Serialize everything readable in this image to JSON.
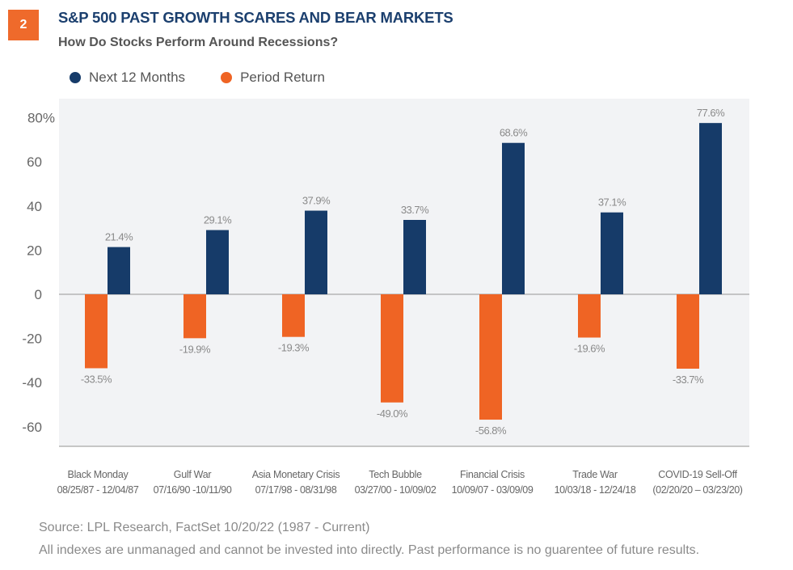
{
  "header": {
    "badge": "2",
    "title": "S&P 500 PAST GROWTH SCARES AND BEAR MARKETS",
    "subtitle": "How Do Stocks Perform Around Recessions?"
  },
  "colors": {
    "next_12_months": "#163b69",
    "period_return": "#ef6424",
    "plot_background": "#f2f3f5",
    "title": "#1b3f6e",
    "badge": "#ef6a2b"
  },
  "chart_data": {
    "type": "bar",
    "title": "S&P 500 PAST GROWTH SCARES AND BEAR MARKETS",
    "subtitle": "How Do Stocks Perform Around Recessions?",
    "xlabel": "",
    "ylabel": "",
    "ylim": [
      -70,
      82
    ],
    "yticks": [
      80,
      60,
      40,
      20,
      0,
      -20,
      -40,
      -60
    ],
    "ytick_labels": [
      "80%",
      "60",
      "40",
      "20",
      "0",
      "-20",
      "-40",
      "-60"
    ],
    "grid": false,
    "legend_position": "top-left",
    "categories": [
      {
        "name": "Black Monday",
        "dates": "08/25/87 - 12/04/87"
      },
      {
        "name": "Gulf War",
        "dates": "07/16/90 -10/11/90"
      },
      {
        "name": "Asia Monetary Crisis",
        "dates": "07/17/98 - 08/31/98"
      },
      {
        "name": "Tech Bubble",
        "dates": "03/27/00 - 10/09/02"
      },
      {
        "name": "Financial Crisis",
        "dates": "10/09/07 - 03/09/09"
      },
      {
        "name": "Trade War",
        "dates": "10/03/18 - 12/24/18"
      },
      {
        "name": "COVID-19 Sell-Off",
        "dates": "(02/20/20 – 03/23/20)"
      }
    ],
    "series": [
      {
        "name": "Period Return",
        "color": "#ef6424",
        "values": [
          -33.5,
          -19.9,
          -19.3,
          -49.0,
          -56.8,
          -19.6,
          -33.7
        ],
        "labels": [
          "-33.5%",
          "-19.9%",
          "-19.3%",
          "-49.0%",
          "-56.8%",
          "-19.6%",
          "-33.7%"
        ]
      },
      {
        "name": "Next 12 Months",
        "color": "#163b69",
        "values": [
          21.4,
          29.1,
          37.9,
          33.7,
          68.6,
          37.1,
          77.6
        ],
        "labels": [
          "21.4%",
          "29.1%",
          "37.9%",
          "33.7%",
          "68.6%",
          "37.1%",
          "77.6%"
        ]
      }
    ],
    "legend": [
      "Next 12 Months",
      "Period Return"
    ]
  },
  "footer": {
    "source": "Source: LPL Research, FactSet  10/20/22 (1987 - Current)",
    "disclaimer": "All indexes are unmanaged and cannot be invested into directly. Past performance is no guarentee of future results."
  }
}
